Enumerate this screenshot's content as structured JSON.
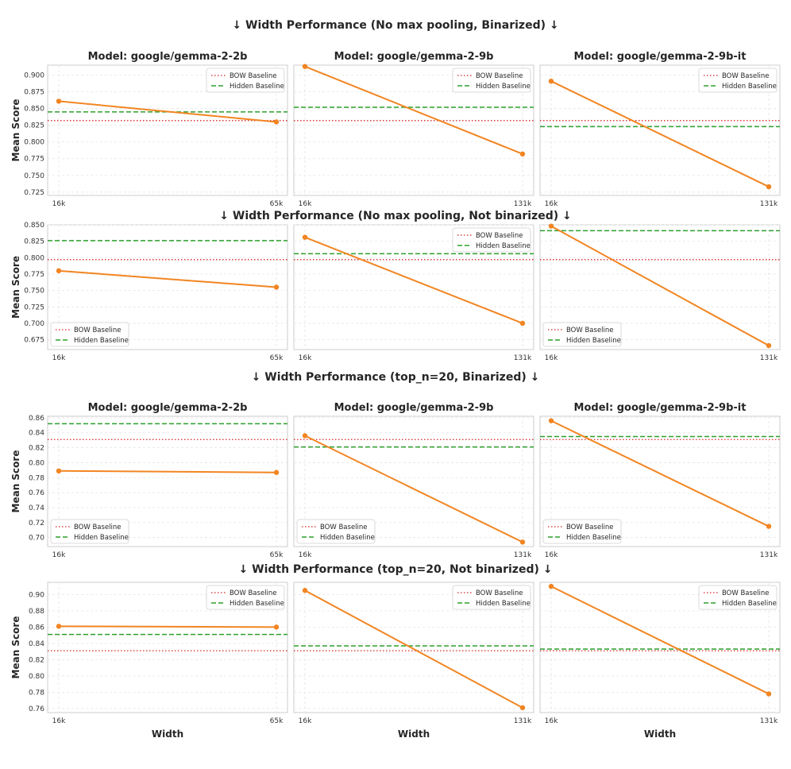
{
  "colors": {
    "series": "#f28522",
    "bow": "#d62728",
    "hidden": "#2ca02c",
    "grid": "#e5e5e5",
    "frame": "#cccccc"
  },
  "labels": {
    "bow": "BOW Baseline",
    "hidden": "Hidden Baseline",
    "y_axis": "Mean Score",
    "x_axis": "Width"
  },
  "sections": [
    {
      "title": "↓ Width Performance (No max pooling, Binarized) ↓"
    },
    {
      "title": "↓ Width Performance (No max pooling, Not binarized) ↓"
    },
    {
      "title": "↓ Width Performance (top_n=20, Binarized) ↓"
    },
    {
      "title": "↓ Width Performance (top_n=20, Not binarized) ↓"
    }
  ],
  "chart_data": [
    {
      "type": "line",
      "section": 0,
      "title": "Model: google/gemma-2-2b",
      "categories": [
        "16k",
        "65k"
      ],
      "values": [
        0.861,
        0.83
      ],
      "bow_baseline": 0.832,
      "hidden_baseline": 0.845,
      "ylim": [
        0.72,
        0.915
      ],
      "yticks": [
        0.725,
        0.75,
        0.775,
        0.8,
        0.825,
        0.85,
        0.875,
        0.9
      ],
      "ytick_labels": [
        "0.725",
        "0.750",
        "0.775",
        "0.800",
        "0.825",
        "0.850",
        "0.875",
        "0.900"
      ],
      "legend": "top-right",
      "ylabel": "Mean Score",
      "xlabel": ""
    },
    {
      "type": "line",
      "section": 0,
      "title": "Model: google/gemma-2-9b",
      "categories": [
        "16k",
        "131k"
      ],
      "values": [
        0.913,
        0.782
      ],
      "bow_baseline": 0.832,
      "hidden_baseline": 0.852,
      "ylim": [
        0.72,
        0.915
      ],
      "yticks": [
        0.725,
        0.75,
        0.775,
        0.8,
        0.825,
        0.85,
        0.875,
        0.9
      ],
      "legend": "top-right",
      "xlabel": ""
    },
    {
      "type": "line",
      "section": 0,
      "title": "Model: google/gemma-2-9b-it",
      "categories": [
        "16k",
        "131k"
      ],
      "values": [
        0.891,
        0.733
      ],
      "bow_baseline": 0.832,
      "hidden_baseline": 0.823,
      "ylim": [
        0.72,
        0.915
      ],
      "yticks": [
        0.725,
        0.75,
        0.775,
        0.8,
        0.825,
        0.85,
        0.875,
        0.9
      ],
      "legend": "top-right",
      "xlabel": ""
    },
    {
      "type": "line",
      "section": 1,
      "title": "",
      "categories": [
        "16k",
        "65k"
      ],
      "values": [
        0.78,
        0.755
      ],
      "bow_baseline": 0.797,
      "hidden_baseline": 0.826,
      "ylim": [
        0.66,
        0.85
      ],
      "yticks": [
        0.675,
        0.7,
        0.725,
        0.75,
        0.775,
        0.8,
        0.825,
        0.85
      ],
      "ytick_labels": [
        "0.675",
        "0.700",
        "0.725",
        "0.750",
        "0.775",
        "0.800",
        "0.825",
        "0.850"
      ],
      "legend": "bottom-left",
      "ylabel": "Mean Score",
      "xlabel": ""
    },
    {
      "type": "line",
      "section": 1,
      "title": "",
      "categories": [
        "16k",
        "131k"
      ],
      "values": [
        0.831,
        0.7
      ],
      "bow_baseline": 0.797,
      "hidden_baseline": 0.806,
      "ylim": [
        0.66,
        0.85
      ],
      "yticks": [
        0.675,
        0.7,
        0.725,
        0.75,
        0.775,
        0.8,
        0.825,
        0.85
      ],
      "legend": "top-right",
      "xlabel": ""
    },
    {
      "type": "line",
      "section": 1,
      "title": "",
      "categories": [
        "16k",
        "131k"
      ],
      "values": [
        0.848,
        0.666
      ],
      "bow_baseline": 0.797,
      "hidden_baseline": 0.841,
      "ylim": [
        0.66,
        0.85
      ],
      "yticks": [
        0.675,
        0.7,
        0.725,
        0.75,
        0.775,
        0.8,
        0.825,
        0.85
      ],
      "legend": "bottom-left",
      "xlabel": ""
    },
    {
      "type": "line",
      "section": 2,
      "title": "Model: google/gemma-2-2b",
      "categories": [
        "16k",
        "65k"
      ],
      "values": [
        0.789,
        0.787
      ],
      "bow_baseline": 0.831,
      "hidden_baseline": 0.852,
      "ylim": [
        0.688,
        0.862
      ],
      "yticks": [
        0.7,
        0.72,
        0.74,
        0.76,
        0.78,
        0.8,
        0.82,
        0.84,
        0.86
      ],
      "ytick_labels": [
        "0.70",
        "0.72",
        "0.74",
        "0.76",
        "0.78",
        "0.80",
        "0.82",
        "0.84",
        "0.86"
      ],
      "legend": "bottom-left",
      "ylabel": "Mean Score",
      "xlabel": ""
    },
    {
      "type": "line",
      "section": 2,
      "title": "Model: google/gemma-2-9b",
      "categories": [
        "16k",
        "131k"
      ],
      "values": [
        0.836,
        0.694
      ],
      "bow_baseline": 0.831,
      "hidden_baseline": 0.821,
      "ylim": [
        0.688,
        0.862
      ],
      "yticks": [
        0.7,
        0.72,
        0.74,
        0.76,
        0.78,
        0.8,
        0.82,
        0.84,
        0.86
      ],
      "legend": "bottom-left",
      "xlabel": ""
    },
    {
      "type": "line",
      "section": 2,
      "title": "Model: google/gemma-2-9b-it",
      "categories": [
        "16k",
        "131k"
      ],
      "values": [
        0.856,
        0.715
      ],
      "bow_baseline": 0.831,
      "hidden_baseline": 0.835,
      "ylim": [
        0.688,
        0.862
      ],
      "yticks": [
        0.7,
        0.72,
        0.74,
        0.76,
        0.78,
        0.8,
        0.82,
        0.84,
        0.86
      ],
      "legend": "bottom-left",
      "xlabel": ""
    },
    {
      "type": "line",
      "section": 3,
      "title": "",
      "categories": [
        "16k",
        "65k"
      ],
      "values": [
        0.861,
        0.86
      ],
      "bow_baseline": 0.831,
      "hidden_baseline": 0.851,
      "ylim": [
        0.755,
        0.915
      ],
      "yticks": [
        0.76,
        0.78,
        0.8,
        0.82,
        0.84,
        0.86,
        0.88,
        0.9
      ],
      "ytick_labels": [
        "0.76",
        "0.78",
        "0.80",
        "0.82",
        "0.84",
        "0.86",
        "0.88",
        "0.90"
      ],
      "legend": "top-right",
      "ylabel": "Mean Score",
      "xlabel": "Width"
    },
    {
      "type": "line",
      "section": 3,
      "title": "",
      "categories": [
        "16k",
        "131k"
      ],
      "values": [
        0.905,
        0.761
      ],
      "bow_baseline": 0.831,
      "hidden_baseline": 0.837,
      "ylim": [
        0.755,
        0.915
      ],
      "yticks": [
        0.76,
        0.78,
        0.8,
        0.82,
        0.84,
        0.86,
        0.88,
        0.9
      ],
      "legend": "top-right",
      "xlabel": "Width"
    },
    {
      "type": "line",
      "section": 3,
      "title": "",
      "categories": [
        "16k",
        "131k"
      ],
      "values": [
        0.91,
        0.778
      ],
      "bow_baseline": 0.831,
      "hidden_baseline": 0.833,
      "ylim": [
        0.755,
        0.915
      ],
      "yticks": [
        0.76,
        0.78,
        0.8,
        0.82,
        0.84,
        0.86,
        0.88,
        0.9
      ],
      "legend": "top-right",
      "xlabel": "Width"
    }
  ]
}
